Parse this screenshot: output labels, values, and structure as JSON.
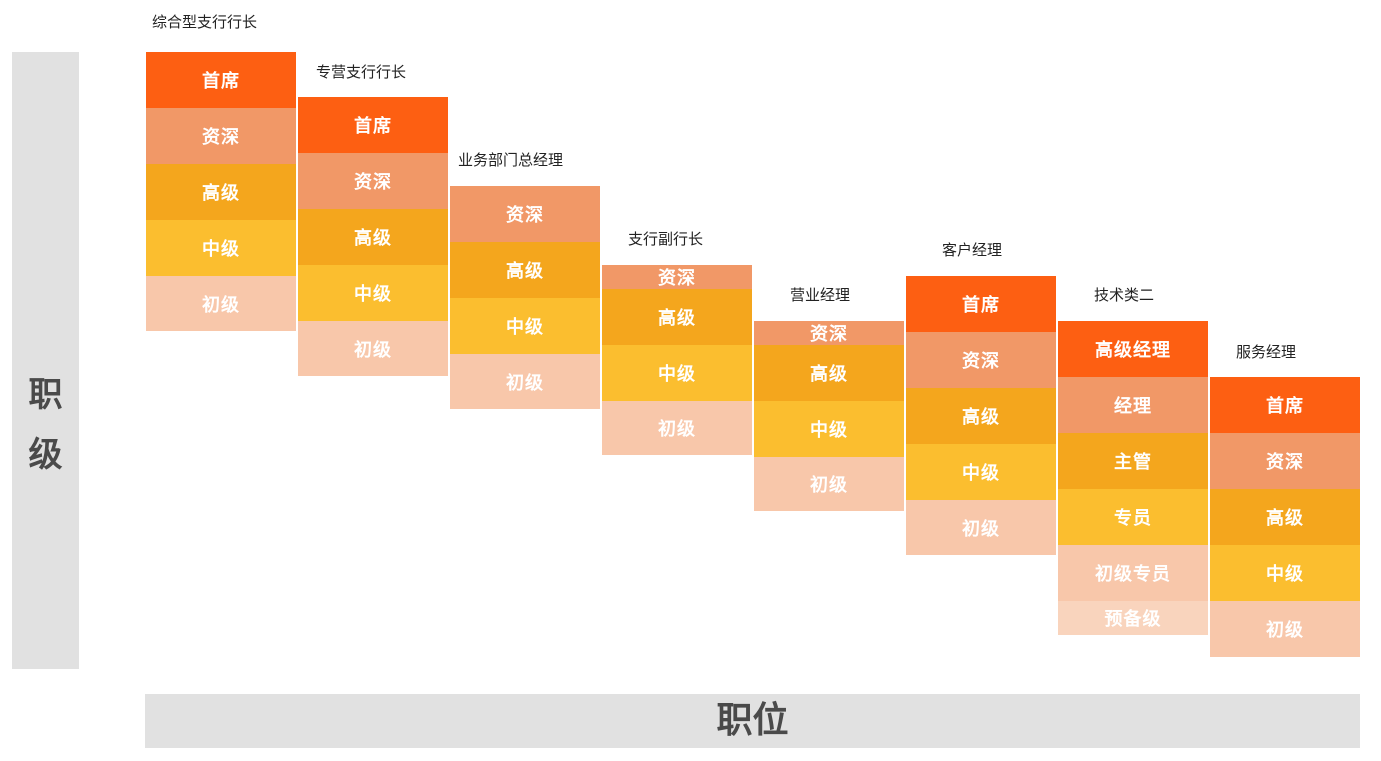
{
  "y_axis_label": "职级",
  "x_axis_label": "职位",
  "colors": {
    "首席": "#fd5f12",
    "资深": "#f19867",
    "高级": "#f4a61d",
    "中级": "#fbbe2f",
    "初级": "#f8c7aa",
    "axis_band": "#e1e1e1"
  },
  "columns": [
    {
      "title": "综合型支行行长",
      "levels": [
        "首席",
        "资深",
        "高级",
        "中级",
        "初级"
      ]
    },
    {
      "title": "专营支行行长",
      "levels": [
        "首席",
        "资深",
        "高级",
        "中级",
        "初级"
      ]
    },
    {
      "title": "业务部门总经理",
      "levels": [
        "资深",
        "高级",
        "中级",
        "初级"
      ]
    },
    {
      "title": "支行副行长",
      "levels": [
        "资深",
        "高级",
        "中级",
        "初级"
      ]
    },
    {
      "title": "营业经理",
      "levels": [
        "资深",
        "高级",
        "中级",
        "初级"
      ]
    },
    {
      "title": "客户经理",
      "levels": [
        "首席",
        "资深",
        "高级",
        "中级",
        "初级"
      ]
    },
    {
      "title": "技术类二",
      "levels": [
        "高级经理",
        "经理",
        "主管",
        "专员",
        "初级专员",
        "预备级"
      ]
    },
    {
      "title": "服务经理",
      "levels": [
        "首席",
        "资深",
        "高级",
        "中级",
        "初级"
      ]
    }
  ]
}
